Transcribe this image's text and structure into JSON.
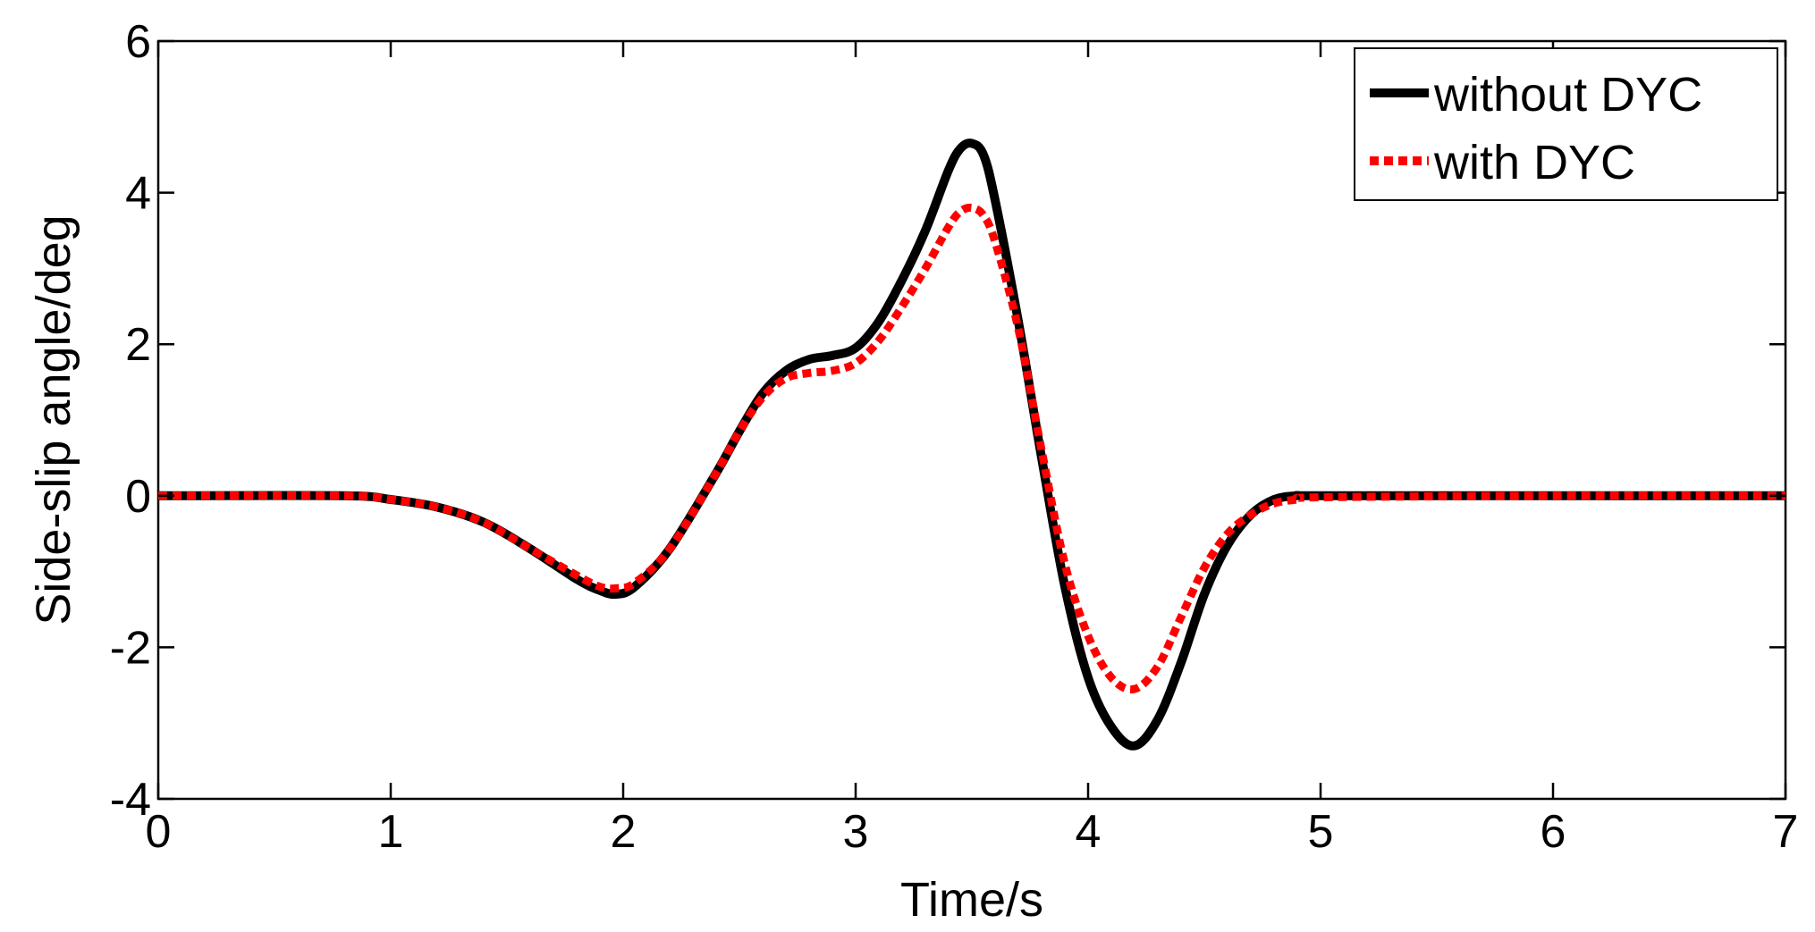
{
  "chart_data": {
    "type": "line",
    "xlabel": "Time/s",
    "ylabel": "Side-slip angle/deg",
    "xlim": [
      0,
      7
    ],
    "ylim": [
      -4,
      6
    ],
    "xticks": [
      "0",
      "1",
      "2",
      "3",
      "4",
      "5",
      "6",
      "7"
    ],
    "yticks": [
      "-4",
      "-2",
      "0",
      "2",
      "4",
      "6"
    ],
    "grid": false,
    "legend_position": "top-right",
    "series": [
      {
        "name": "without DYC",
        "color": "#000000",
        "line_style": "solid",
        "x": [
          0,
          0.8,
          1.0,
          1.2,
          1.4,
          1.6,
          1.8,
          1.9,
          1.97,
          2.05,
          2.2,
          2.4,
          2.5,
          2.6,
          2.7,
          2.8,
          2.9,
          3.0,
          3.1,
          3.2,
          3.3,
          3.4,
          3.45,
          3.5,
          3.55,
          3.6,
          3.7,
          3.8,
          3.9,
          4.0,
          4.1,
          4.2,
          4.3,
          4.4,
          4.5,
          4.6,
          4.7,
          4.8,
          4.9,
          5.0,
          6.0,
          7.0
        ],
        "y": [
          0,
          0,
          -0.05,
          -0.15,
          -0.35,
          -0.7,
          -1.1,
          -1.25,
          -1.3,
          -1.2,
          -0.7,
          0.3,
          0.85,
          1.35,
          1.65,
          1.8,
          1.85,
          1.95,
          2.3,
          2.85,
          3.5,
          4.3,
          4.58,
          4.65,
          4.5,
          3.9,
          2.3,
          0.5,
          -1.2,
          -2.4,
          -3.05,
          -3.3,
          -2.95,
          -2.2,
          -1.3,
          -0.65,
          -0.25,
          -0.05,
          0,
          0,
          0,
          0
        ]
      },
      {
        "name": "with DYC",
        "color": "#ff0000",
        "line_style": "dotted",
        "x": [
          0,
          0.8,
          1.0,
          1.2,
          1.4,
          1.6,
          1.8,
          1.9,
          1.97,
          2.05,
          2.2,
          2.4,
          2.5,
          2.6,
          2.7,
          2.8,
          2.9,
          3.0,
          3.1,
          3.2,
          3.3,
          3.4,
          3.45,
          3.5,
          3.55,
          3.6,
          3.7,
          3.8,
          3.9,
          4.0,
          4.1,
          4.2,
          4.3,
          4.4,
          4.5,
          4.6,
          4.7,
          4.8,
          4.9,
          5.0,
          6.0,
          7.0
        ],
        "y": [
          0,
          0,
          -0.05,
          -0.15,
          -0.35,
          -0.7,
          -1.05,
          -1.2,
          -1.22,
          -1.15,
          -0.7,
          0.3,
          0.85,
          1.3,
          1.55,
          1.62,
          1.65,
          1.75,
          2.05,
          2.5,
          3.0,
          3.55,
          3.75,
          3.8,
          3.7,
          3.35,
          2.2,
          0.6,
          -0.9,
          -1.85,
          -2.4,
          -2.55,
          -2.25,
          -1.6,
          -0.95,
          -0.5,
          -0.25,
          -0.1,
          -0.05,
          -0.02,
          0,
          0
        ]
      }
    ]
  }
}
